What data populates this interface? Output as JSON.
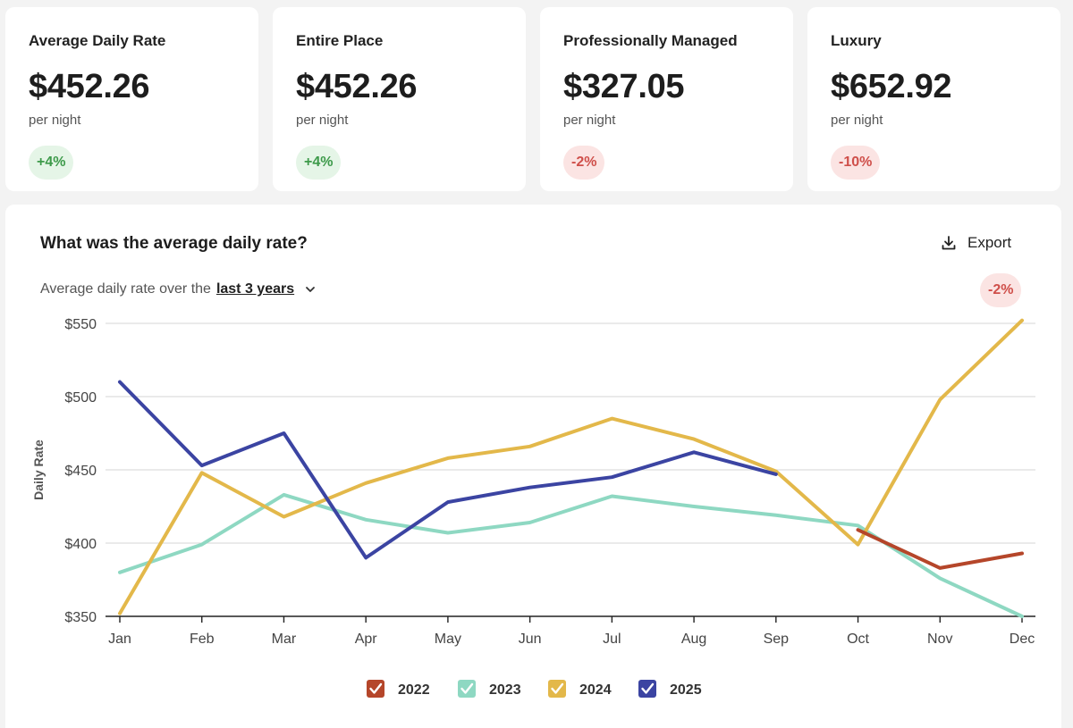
{
  "cards": [
    {
      "title": "Average Daily Rate",
      "value": "$452.26",
      "unit": "per night",
      "change": "+4%",
      "trend": "up"
    },
    {
      "title": "Entire Place",
      "value": "$452.26",
      "unit": "per night",
      "change": "+4%",
      "trend": "up"
    },
    {
      "title": "Professionally Managed",
      "value": "$327.05",
      "unit": "per night",
      "change": "-2%",
      "trend": "down"
    },
    {
      "title": "Luxury",
      "value": "$652.92",
      "unit": "per night",
      "change": "-10%",
      "trend": "down"
    }
  ],
  "panel": {
    "title": "What was the average daily rate?",
    "export_label": "Export",
    "subtitle_prefix": "Average daily rate over the",
    "range_label": "last 3 years",
    "change": "-2%"
  },
  "colors": {
    "2022": "#b5462a",
    "2023": "#8ed8c2",
    "2024": "#e3b84a",
    "2025": "#3b44a2"
  },
  "chart_data": {
    "type": "line",
    "ylabel": "Daily Rate",
    "xlabel": "",
    "categories": [
      "Jan",
      "Feb",
      "Mar",
      "Apr",
      "May",
      "Jun",
      "Jul",
      "Aug",
      "Sep",
      "Oct",
      "Nov",
      "Dec"
    ],
    "ylim": [
      350,
      555
    ],
    "yticks": [
      350,
      400,
      450,
      500,
      550
    ],
    "ytick_labels": [
      "$350",
      "$400",
      "$450",
      "$500",
      "$550"
    ],
    "grid": true,
    "legend_position": "bottom-center",
    "series": [
      {
        "name": "2022",
        "values": [
          null,
          null,
          null,
          null,
          null,
          null,
          null,
          null,
          null,
          409,
          383,
          393
        ]
      },
      {
        "name": "2023",
        "values": [
          380,
          399,
          433,
          416,
          407,
          414,
          432,
          425,
          419,
          412,
          376,
          350
        ]
      },
      {
        "name": "2024",
        "values": [
          352,
          448,
          418,
          441,
          458,
          466,
          485,
          471,
          449,
          399,
          498,
          552
        ]
      },
      {
        "name": "2025",
        "values": [
          510,
          453,
          475,
          390,
          428,
          438,
          445,
          462,
          447,
          null,
          null,
          null
        ]
      }
    ]
  }
}
